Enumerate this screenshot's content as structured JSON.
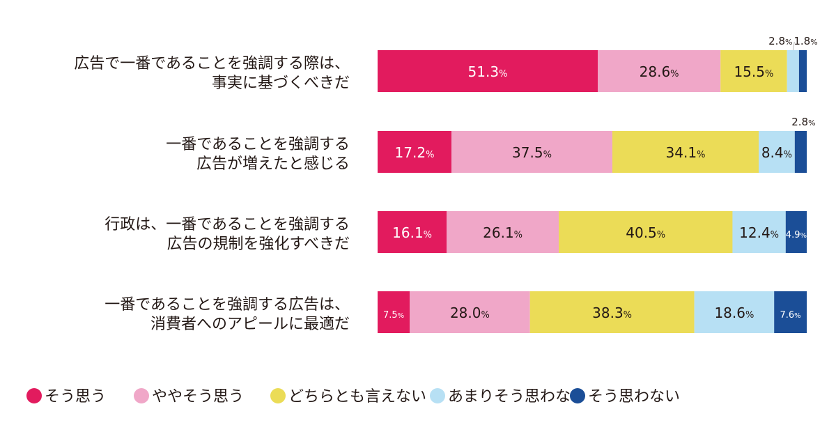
{
  "chart_data": {
    "type": "bar",
    "orientation": "horizontal",
    "stacked": true,
    "normalized": true,
    "unit": "%",
    "legend_position": "bottom",
    "categories": [
      [
        "広告で一番であることを強調する際は、",
        "事実に基づくべきだ"
      ],
      [
        "一番であることを強調する",
        "広告が増えたと感じる"
      ],
      [
        "行政は、一番であることを強調する",
        "広告の規制を強化すべきだ"
      ],
      [
        "一番であることを強調する広告は、",
        "消費者へのアピールに最適だ"
      ]
    ],
    "series": [
      {
        "name": "そう思う",
        "color": "#e21b5e",
        "values": [
          51.3,
          17.2,
          16.1,
          7.5
        ]
      },
      {
        "name": "ややそう思う",
        "color": "#f0a7c8",
        "values": [
          28.6,
          37.5,
          26.1,
          28.0
        ]
      },
      {
        "name": "どちらとも言えない",
        "color": "#ebdc57",
        "values": [
          15.5,
          34.1,
          40.5,
          38.3
        ]
      },
      {
        "name": "あまりそう思わない",
        "color": "#b7e0f4",
        "values": [
          2.8,
          8.4,
          12.4,
          18.6
        ]
      },
      {
        "name": "そう思わない",
        "color": "#1b4e97",
        "values": [
          1.8,
          2.8,
          4.9,
          7.6
        ]
      }
    ]
  }
}
